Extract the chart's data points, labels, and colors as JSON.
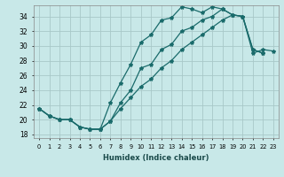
{
  "xlabel": "Humidex (Indice chaleur)",
  "bg_color": "#c8e8e8",
  "grid_color": "#a8c8c8",
  "line_color": "#1a6b6b",
  "xlim": [
    -0.5,
    23.5
  ],
  "ylim": [
    17.5,
    35.5
  ],
  "xticks": [
    0,
    1,
    2,
    3,
    4,
    5,
    6,
    7,
    8,
    9,
    10,
    11,
    12,
    13,
    14,
    15,
    16,
    17,
    18,
    19,
    20,
    21,
    22,
    23
  ],
  "yticks": [
    18,
    20,
    22,
    24,
    26,
    28,
    30,
    32,
    34
  ],
  "series1_x": [
    0,
    1,
    2,
    3,
    4,
    5,
    6,
    7,
    8,
    9,
    10,
    11,
    12,
    13,
    14,
    15,
    16,
    17,
    18,
    19,
    20,
    21,
    22
  ],
  "series1_y": [
    21.5,
    20.5,
    20.0,
    20.0,
    19.0,
    18.7,
    18.7,
    22.3,
    25.0,
    27.5,
    30.5,
    31.5,
    33.5,
    33.8,
    35.3,
    35.0,
    34.5,
    35.3,
    35.0,
    34.2,
    34.0,
    29.5,
    29.0
  ],
  "series2_x": [
    0,
    1,
    2,
    3,
    4,
    5,
    6,
    7,
    8,
    9,
    10,
    11,
    12,
    13,
    14,
    15,
    16,
    17,
    18,
    19,
    20,
    21,
    22
  ],
  "series2_y": [
    21.5,
    20.5,
    20.0,
    20.0,
    19.0,
    18.7,
    18.7,
    19.8,
    22.3,
    24.0,
    27.0,
    27.5,
    29.5,
    30.2,
    32.0,
    32.5,
    33.5,
    34.0,
    35.0,
    34.2,
    34.0,
    29.5,
    29.0
  ],
  "series3_x": [
    0,
    1,
    2,
    3,
    4,
    5,
    6,
    7,
    8,
    9,
    10,
    11,
    12,
    13,
    14,
    15,
    16,
    17,
    18,
    19,
    20,
    21,
    22,
    23
  ],
  "series3_y": [
    21.5,
    20.5,
    20.0,
    20.0,
    19.0,
    18.7,
    18.7,
    19.8,
    21.5,
    23.0,
    24.5,
    25.5,
    27.0,
    28.0,
    29.5,
    30.5,
    31.5,
    32.5,
    33.5,
    34.2,
    34.0,
    29.0,
    29.5,
    29.3
  ]
}
